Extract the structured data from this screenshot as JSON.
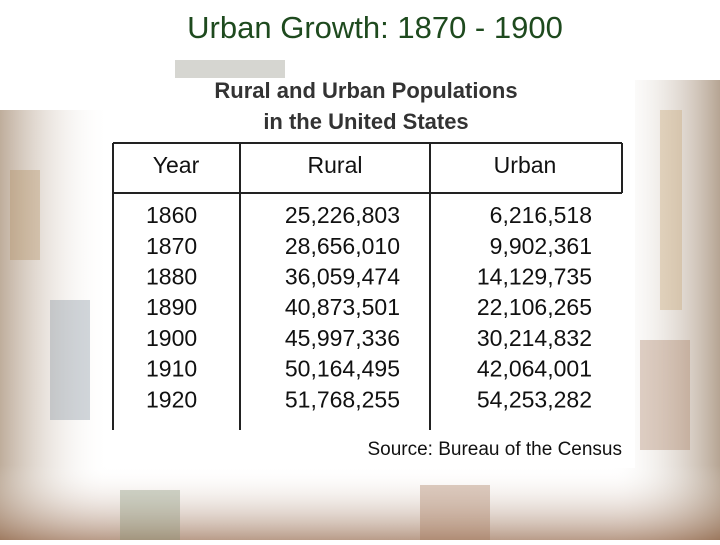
{
  "title": "Urban Growth:  1870 - 1900",
  "table": {
    "title_lines": [
      "Rural and Urban Populations",
      "in the United States"
    ],
    "header": [
      "Year",
      "Rural",
      "Urban"
    ],
    "rows": [
      [
        "1860",
        "25,226,803",
        "6,216,518"
      ],
      [
        "1870",
        "28,656,010",
        "9,902,361"
      ],
      [
        "1880",
        "36,059,474",
        "14,129,735"
      ],
      [
        "1890",
        "40,873,501",
        "22,106,265"
      ],
      [
        "1900",
        "45,997,336",
        "30,214,832"
      ],
      [
        "1910",
        "50,164,495",
        "42,064,001"
      ],
      [
        "1920",
        "51,768,255",
        "54,253,282"
      ]
    ],
    "source": "Source:  Bureau of the Census"
  }
}
